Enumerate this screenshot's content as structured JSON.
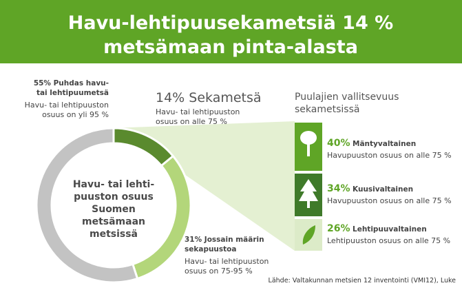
{
  "chart_data": {
    "type": "donut",
    "title_lines": [
      "Havu-lehtipuusekametsiä 14 %",
      "metsämaan pinta-alasta"
    ],
    "center_lines": [
      "Havu- tai lehti-",
      "puuston osuus",
      "Suomen",
      "metsämaan",
      "metsissä"
    ],
    "values": [
      14,
      31,
      55
    ],
    "value_labels": [
      "14%",
      "31%",
      "55%"
    ],
    "label_lines": [
      [
        "Sekametsä"
      ],
      [
        "Jossain määrin",
        "sekapuustoa"
      ],
      [
        "Puhdas havu-",
        "tai lehtipuumetsä"
      ]
    ],
    "descriptions": [
      [
        "Havu- tai lehtipuuston",
        "osuus on alle 75 %"
      ],
      [
        "Havu- tai lehtipuuston",
        "osuus on 75-95 %"
      ],
      [
        "Havu- tai lehtipuuston",
        "osuus on yli 95 %"
      ]
    ],
    "colors": [
      "#5a8a2e",
      "#b3d67a",
      "#c3c3c3"
    ],
    "breakdown": {
      "title_lines": [
        "Puulajien vallitsevuus",
        "sekametsissä"
      ],
      "categories": [
        "Mäntyvaltainen",
        "Kuusivaltainen",
        "Lehtipuuvaltainen"
      ],
      "values": [
        40,
        34,
        26
      ],
      "value_labels": [
        "40%",
        "34%",
        "26%"
      ],
      "descriptions": [
        "Havupuuston osuus on alle 75 %",
        "Havupuuston osuus on alle 75 %",
        "Lehtipuuston osuus on alle 75 %"
      ]
    },
    "source": "Lähde: Valtakunnan metsien 12 inventointi (VMI12), Luke"
  }
}
